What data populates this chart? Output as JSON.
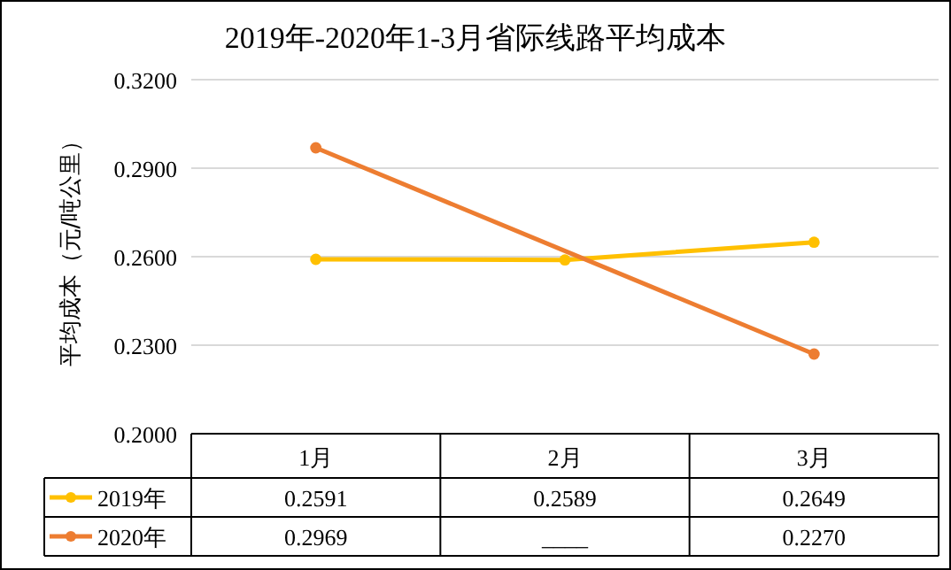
{
  "chart_data": {
    "type": "line",
    "title": "2019年-2020年1-3月省际线路平均成本",
    "ylabel": "平均成本（元/吨公里）",
    "categories": [
      "1月",
      "2月",
      "3月"
    ],
    "series": [
      {
        "name": "2019年",
        "color": "#ffc000",
        "values": [
          0.2591,
          0.2589,
          0.2649
        ],
        "value_labels": [
          "0.2591",
          "0.2589",
          "0.2649"
        ]
      },
      {
        "name": "2020年",
        "color": "#ed7d31",
        "values": [
          0.2969,
          null,
          0.227
        ],
        "value_labels": [
          "0.2969",
          "____",
          "0.2270"
        ]
      }
    ],
    "ylim": [
      0.2,
      0.32
    ],
    "yticks": [
      {
        "value": 0.2,
        "label": "0.2000"
      },
      {
        "value": 0.23,
        "label": "0.2300"
      },
      {
        "value": 0.26,
        "label": "0.2600"
      },
      {
        "value": 0.29,
        "label": "0.2900"
      },
      {
        "value": 0.32,
        "label": "0.3200"
      }
    ],
    "grid": "y",
    "marker": "circle",
    "legend": "bottom"
  }
}
